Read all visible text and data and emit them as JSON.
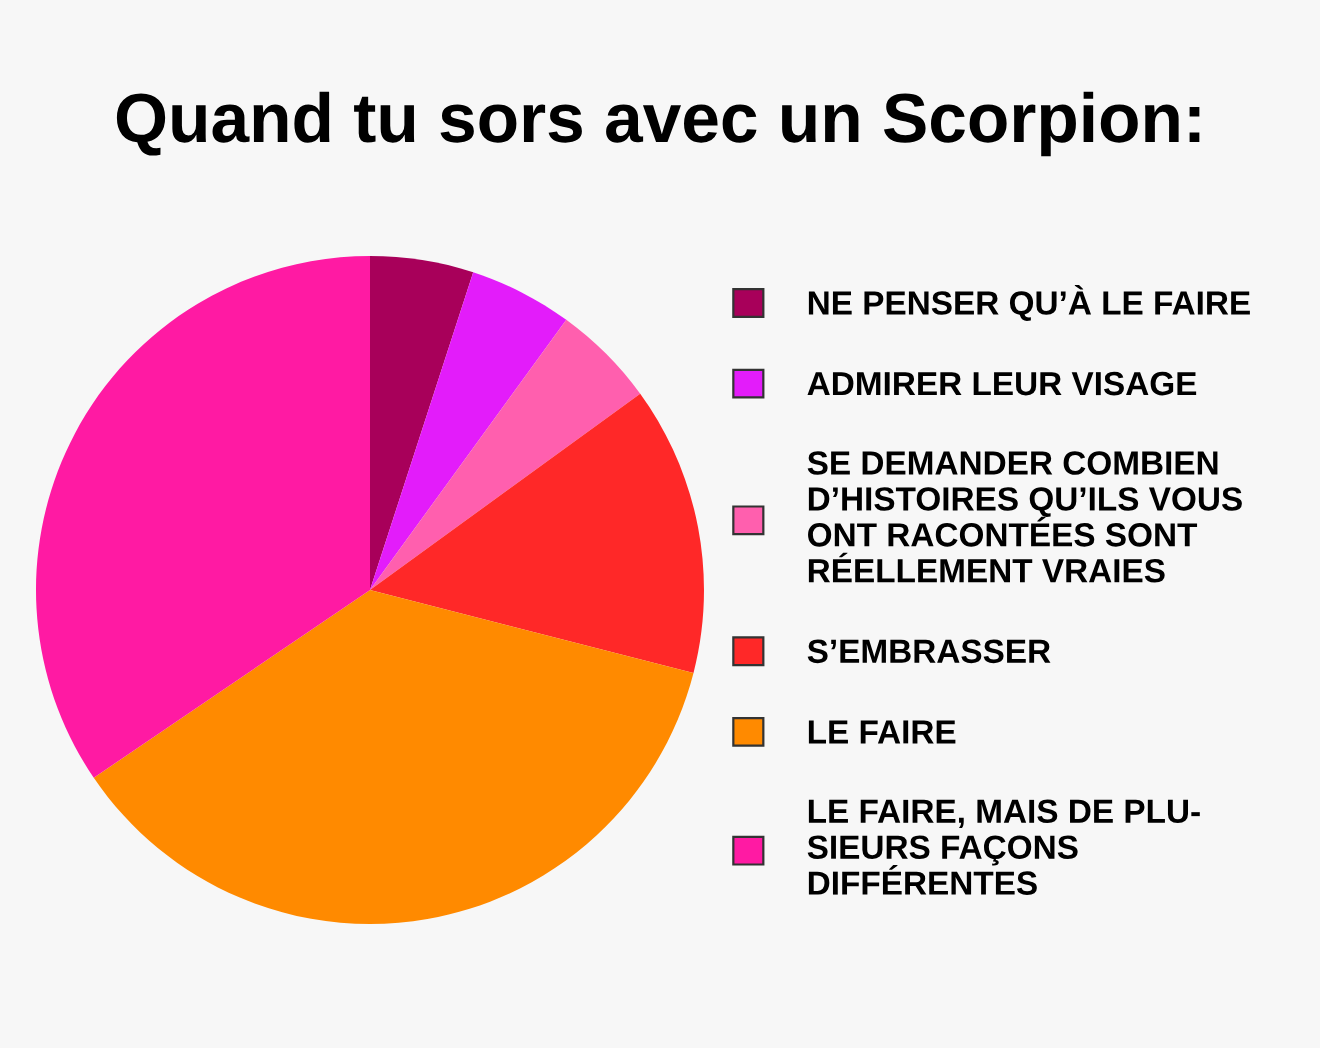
{
  "chart_data": {
    "type": "pie",
    "title": "Quand tu sors avec un Scorpion:",
    "categories": [
      "NE PENSER QU’À LE FAIRE",
      "ADMIRER LEUR VISAGE",
      "SE DEMANDER COMBIEN\nD’HISTOIRES QU’ILS VOUS\nONT RACONTÉES SONT\nRÉELLEMENT VRAIES",
      "S’EMBRASSER",
      "LE FAIRE",
      "LE FAIRE, MAIS DE PLU-\nSIEURS FAÇONS\nDIFFÉRENTES"
    ],
    "values": [
      5,
      5,
      5,
      14,
      36.5,
      34.5
    ],
    "colors": [
      "#a8005a",
      "#e31cfa",
      "#ff5fae",
      "#ff2828",
      "#ff8a00",
      "#ff1aa3"
    ],
    "legend": "right"
  }
}
